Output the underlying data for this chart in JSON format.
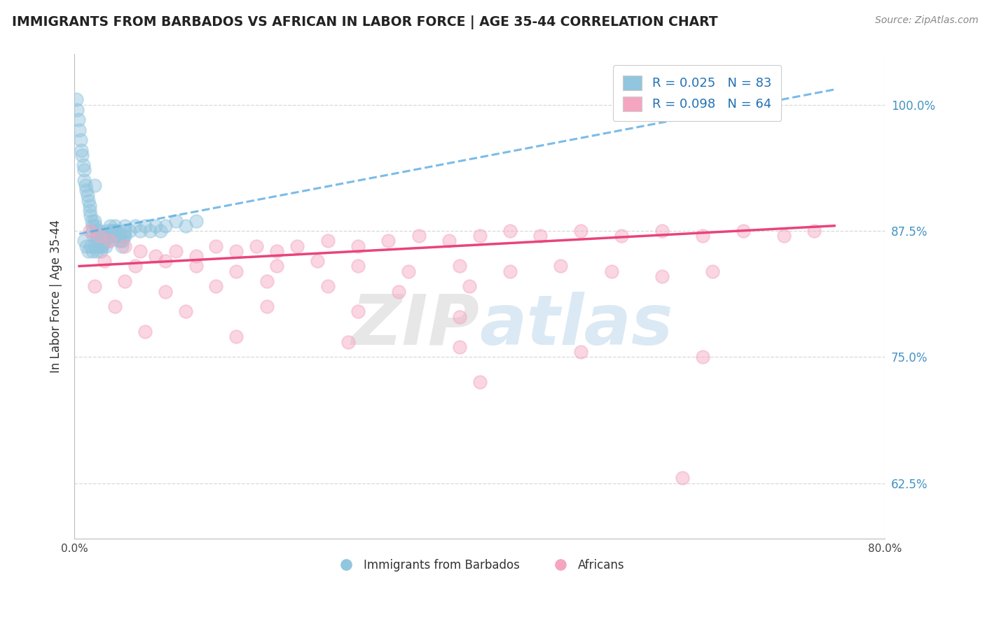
{
  "title": "IMMIGRANTS FROM BARBADOS VS AFRICAN IN LABOR FORCE | AGE 35-44 CORRELATION CHART",
  "source_text": "Source: ZipAtlas.com",
  "ylabel": "In Labor Force | Age 35-44",
  "right_yticks": [
    62.5,
    75.0,
    87.5,
    100.0
  ],
  "right_yticklabels": [
    "62.5%",
    "75.0%",
    "87.5%",
    "100.0%"
  ],
  "legend_r1": "R = 0.025",
  "legend_n1": "N = 83",
  "legend_r2": "R = 0.098",
  "legend_n2": "N = 64",
  "legend_label1": "Immigrants from Barbados",
  "legend_label2": "Africans",
  "blue_color": "#92c5de",
  "pink_color": "#f4a6c0",
  "trend_blue_color": "#5aabe0",
  "trend_pink_color": "#e8447a",
  "blue_scatter_x": [
    0.2,
    0.3,
    0.4,
    0.5,
    0.6,
    0.7,
    0.8,
    0.9,
    1.0,
    1.0,
    1.1,
    1.2,
    1.3,
    1.4,
    1.5,
    1.5,
    1.6,
    1.7,
    1.8,
    1.8,
    1.9,
    2.0,
    2.0,
    2.1,
    2.2,
    2.2,
    2.3,
    2.4,
    2.5,
    2.5,
    2.6,
    2.7,
    2.8,
    2.9,
    3.0,
    3.0,
    3.1,
    3.2,
    3.3,
    3.4,
    3.5,
    3.6,
    3.7,
    3.8,
    3.9,
    4.0,
    4.0,
    4.1,
    4.2,
    4.3,
    4.4,
    4.5,
    4.6,
    4.7,
    4.8,
    4.9,
    5.0,
    5.0,
    5.5,
    6.0,
    6.5,
    7.0,
    7.5,
    8.0,
    8.5,
    9.0,
    10.0,
    11.0,
    12.0,
    1.0,
    1.2,
    1.4,
    1.6,
    1.8,
    2.0,
    2.2,
    2.4,
    2.6,
    2.8,
    3.0,
    3.5,
    4.0,
    5.0
  ],
  "blue_scatter_y": [
    100.5,
    99.5,
    98.5,
    97.5,
    96.5,
    95.5,
    95.0,
    94.0,
    93.5,
    92.5,
    92.0,
    91.5,
    91.0,
    90.5,
    90.0,
    89.5,
    89.0,
    88.5,
    88.0,
    87.5,
    87.0,
    92.0,
    88.5,
    88.0,
    87.5,
    87.0,
    86.5,
    86.0,
    87.5,
    87.0,
    86.5,
    86.0,
    87.0,
    86.5,
    87.0,
    86.5,
    86.0,
    87.5,
    87.0,
    86.5,
    88.0,
    87.5,
    87.0,
    87.5,
    87.0,
    88.0,
    87.5,
    87.0,
    87.5,
    87.0,
    86.5,
    87.0,
    86.5,
    86.0,
    86.5,
    87.0,
    87.5,
    87.0,
    87.5,
    88.0,
    87.5,
    88.0,
    87.5,
    88.0,
    87.5,
    88.0,
    88.5,
    88.0,
    88.5,
    86.5,
    86.0,
    85.5,
    86.0,
    85.5,
    86.0,
    85.5,
    86.0,
    85.5,
    86.0,
    86.5,
    87.0,
    87.5,
    88.0
  ],
  "pink_scatter_x": [
    1.5,
    2.5,
    3.5,
    5.0,
    6.5,
    8.0,
    10.0,
    12.0,
    14.0,
    16.0,
    18.0,
    20.0,
    22.0,
    25.0,
    28.0,
    31.0,
    34.0,
    37.0,
    40.0,
    43.0,
    46.0,
    50.0,
    54.0,
    58.0,
    62.0,
    66.0,
    70.0,
    73.0,
    3.0,
    6.0,
    9.0,
    12.0,
    16.0,
    20.0,
    24.0,
    28.0,
    33.0,
    38.0,
    43.0,
    48.0,
    53.0,
    58.0,
    63.0,
    2.0,
    5.0,
    9.0,
    14.0,
    19.0,
    25.0,
    32.0,
    39.0,
    4.0,
    11.0,
    19.0,
    28.0,
    38.0,
    7.0,
    16.0,
    27.0,
    38.0,
    50.0,
    62.0,
    60.0,
    40.0
  ],
  "pink_scatter_y": [
    87.5,
    87.0,
    86.5,
    86.0,
    85.5,
    85.0,
    85.5,
    85.0,
    86.0,
    85.5,
    86.0,
    85.5,
    86.0,
    86.5,
    86.0,
    86.5,
    87.0,
    86.5,
    87.0,
    87.5,
    87.0,
    87.5,
    87.0,
    87.5,
    87.0,
    87.5,
    87.0,
    87.5,
    84.5,
    84.0,
    84.5,
    84.0,
    83.5,
    84.0,
    84.5,
    84.0,
    83.5,
    84.0,
    83.5,
    84.0,
    83.5,
    83.0,
    83.5,
    82.0,
    82.5,
    81.5,
    82.0,
    82.5,
    82.0,
    81.5,
    82.0,
    80.0,
    79.5,
    80.0,
    79.5,
    79.0,
    77.5,
    77.0,
    76.5,
    76.0,
    75.5,
    75.0,
    63.0,
    72.5
  ],
  "xlim": [
    0.0,
    80.0
  ],
  "ylim": [
    57.0,
    105.0
  ],
  "blue_trend_x0": 0.5,
  "blue_trend_x1": 75.0,
  "blue_trend_y0": 87.2,
  "blue_trend_y1": 101.5,
  "pink_trend_x0": 0.5,
  "pink_trend_x1": 75.0,
  "pink_trend_y0": 84.0,
  "pink_trend_y1": 88.0,
  "watermark_zip": "ZIP",
  "watermark_atlas": "atlas",
  "background_color": "#ffffff",
  "grid_color": "#d8d8d8",
  "xtick_left": "0.0%",
  "xtick_right": "80.0%"
}
